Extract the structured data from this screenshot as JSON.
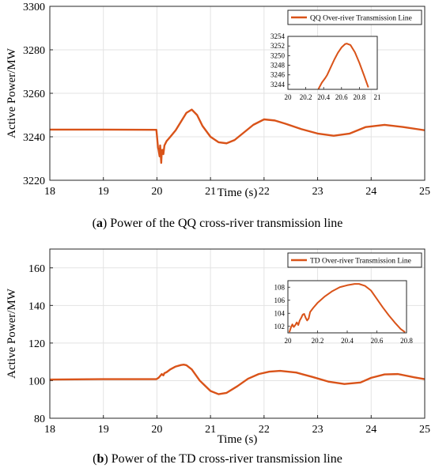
{
  "colors": {
    "series": "#d95319",
    "axis": "#262626",
    "grid": "#e3e3e3"
  },
  "chart_data": [
    {
      "type": "line",
      "caption_label": "a",
      "caption_text": "Power of the QQ cross-river transmission line",
      "xlabel": "Time (s)",
      "ylabel": "Active Power/MW",
      "xlim": [
        18,
        25
      ],
      "ylim": [
        3220,
        3300
      ],
      "xticks": [
        "18",
        "19",
        "20",
        "21",
        "22",
        "23",
        "24",
        "25"
      ],
      "yticks": [
        "3220",
        "3240",
        "3260",
        "3280",
        "3300"
      ],
      "grid": true,
      "legend_position": "top-right",
      "series": [
        {
          "name": "QQ Over-river Transmission Line",
          "x": [
            18,
            19,
            19.99,
            20.02,
            20.03,
            20.05,
            20.06,
            20.08,
            20.09,
            20.1,
            20.12,
            20.14,
            20.18,
            20.25,
            20.35,
            20.45,
            20.55,
            20.65,
            20.75,
            20.85,
            21.0,
            21.15,
            21.3,
            21.45,
            21.6,
            21.8,
            22.0,
            22.2,
            22.4,
            22.7,
            23.0,
            23.3,
            23.6,
            23.9,
            24.25,
            24.6,
            25.0
          ],
          "y": [
            3243.3,
            3243.3,
            3243.2,
            3235,
            3234,
            3231,
            3236,
            3228,
            3233,
            3234,
            3232,
            3236,
            3238,
            3240,
            3243,
            3247,
            3251,
            3252.5,
            3250,
            3245,
            3240,
            3237.5,
            3237,
            3238.5,
            3241.5,
            3245.5,
            3248,
            3247.5,
            3246,
            3243.5,
            3241.5,
            3240.5,
            3241.5,
            3244.5,
            3245.5,
            3244.5,
            3243
          ]
        }
      ],
      "inset": {
        "xlim": [
          20,
          21
        ],
        "ylim": [
          3243,
          3254
        ],
        "xticks": [
          "20",
          "20.2",
          "20.4",
          "20.6",
          "20.8",
          "21"
        ],
        "yticks": [
          "3244",
          "3246",
          "3248",
          "3250",
          "3252",
          "3254"
        ],
        "x": [
          20.34,
          20.38,
          20.42,
          20.44,
          20.48,
          20.52,
          20.56,
          20.6,
          20.64,
          20.66,
          20.7,
          20.75,
          20.8,
          20.85,
          20.9
        ],
        "y": [
          3243,
          3244.4,
          3245.4,
          3246,
          3247.6,
          3249.2,
          3250.6,
          3251.7,
          3252.4,
          3252.5,
          3252.2,
          3250.7,
          3248.5,
          3246,
          3243.4
        ]
      }
    },
    {
      "type": "line",
      "caption_label": "b",
      "caption_text": "Power of the TD cross-river transmission line",
      "xlabel": "Time (s)",
      "ylabel": "Active Power/MW",
      "xlim": [
        18,
        25
      ],
      "ylim": [
        80,
        170
      ],
      "xticks": [
        "18",
        "19",
        "20",
        "21",
        "22",
        "23",
        "24",
        "25"
      ],
      "yticks": [
        "80",
        "100",
        "120",
        "140",
        "160"
      ],
      "grid": true,
      "legend_position": "top-right",
      "series": [
        {
          "name": "TD Over-river Transmission Line",
          "x": [
            18,
            19,
            19.99,
            20.03,
            20.06,
            20.09,
            20.12,
            20.14,
            20.18,
            20.25,
            20.35,
            20.45,
            20.5,
            20.55,
            20.65,
            20.8,
            21.0,
            21.15,
            21.3,
            21.5,
            21.7,
            21.9,
            22.1,
            22.3,
            22.6,
            22.9,
            23.2,
            23.5,
            23.8,
            24.0,
            24.25,
            24.5,
            24.8,
            25.0
          ],
          "y": [
            100.6,
            100.8,
            100.8,
            101.5,
            102.5,
            103.5,
            102.8,
            104,
            104.5,
            106,
            107.5,
            108.3,
            108.5,
            108.2,
            106,
            100,
            94.5,
            92.8,
            93.5,
            97,
            101,
            103.5,
            104.8,
            105.2,
            104.3,
            102,
            99.5,
            98.2,
            99,
            101.5,
            103.3,
            103.5,
            101.8,
            100.8
          ]
        }
      ],
      "inset": {
        "xlim": [
          20,
          20.8
        ],
        "ylim": [
          101,
          109
        ],
        "xticks": [
          "20",
          "20.2",
          "20.4",
          "20.6",
          "20.8"
        ],
        "yticks": [
          "102",
          "104",
          "106",
          "108"
        ],
        "x": [
          20.01,
          20.02,
          20.03,
          20.04,
          20.05,
          20.06,
          20.07,
          20.08,
          20.09,
          20.1,
          20.11,
          20.12,
          20.13,
          20.14,
          20.15,
          20.17,
          20.2,
          20.25,
          20.3,
          20.35,
          20.4,
          20.45,
          20.48,
          20.52,
          20.56,
          20.6,
          20.64,
          20.68,
          20.72,
          20.76,
          20.79
        ],
        "y": [
          101.1,
          101.8,
          102.3,
          101.9,
          102.2,
          102.6,
          102.2,
          102.9,
          103.3,
          103.8,
          103.9,
          103.3,
          102.9,
          103.2,
          104.2,
          104.8,
          105.6,
          106.6,
          107.4,
          108.0,
          108.3,
          108.5,
          108.5,
          108.2,
          107.5,
          106.2,
          104.9,
          103.7,
          102.6,
          101.6,
          101.1
        ]
      }
    }
  ]
}
